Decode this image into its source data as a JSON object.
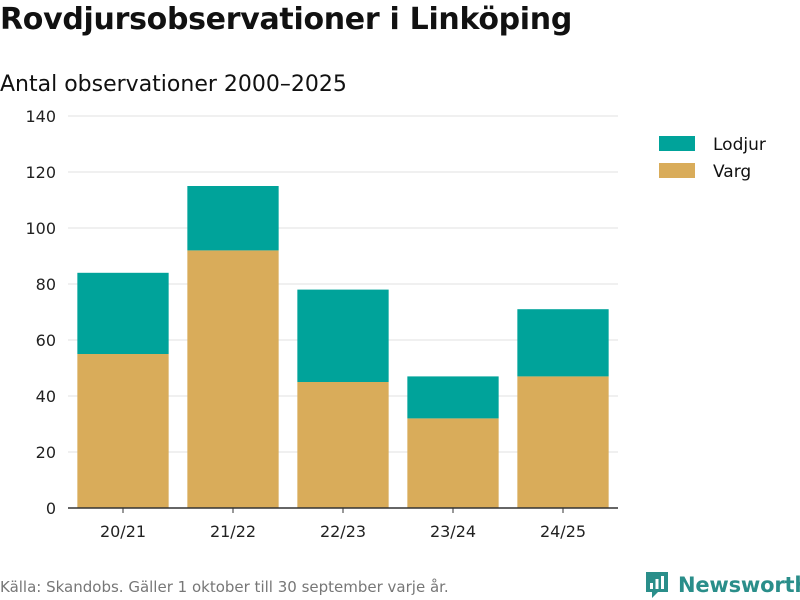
{
  "chart_data": {
    "type": "bar",
    "stacked": true,
    "title": "Rovdjursobservationer i Linköping",
    "subtitle": "Antal observationer 2000–2025",
    "xlabel": "",
    "ylabel": "",
    "ylim": [
      0,
      140
    ],
    "yticks": [
      0,
      20,
      40,
      60,
      80,
      100,
      120,
      140
    ],
    "grid": true,
    "legend_position": "top-right",
    "categories": [
      "20/21",
      "21/22",
      "22/23",
      "23/24",
      "24/25"
    ],
    "series": [
      {
        "name": "Varg",
        "color": "#d9ac5a",
        "values": [
          55,
          92,
          45,
          32,
          47
        ]
      },
      {
        "name": "Lodjur",
        "color": "#00a39a",
        "values": [
          29,
          23,
          33,
          15,
          24
        ]
      }
    ],
    "legend_order": [
      "Lodjur",
      "Varg"
    ]
  },
  "footer": {
    "source": "Källa: Skandobs. Gäller 1 oktober till 30 september varje år.",
    "brand": "Newsworthy",
    "brand_icon": "newsworthy-logo-icon"
  }
}
